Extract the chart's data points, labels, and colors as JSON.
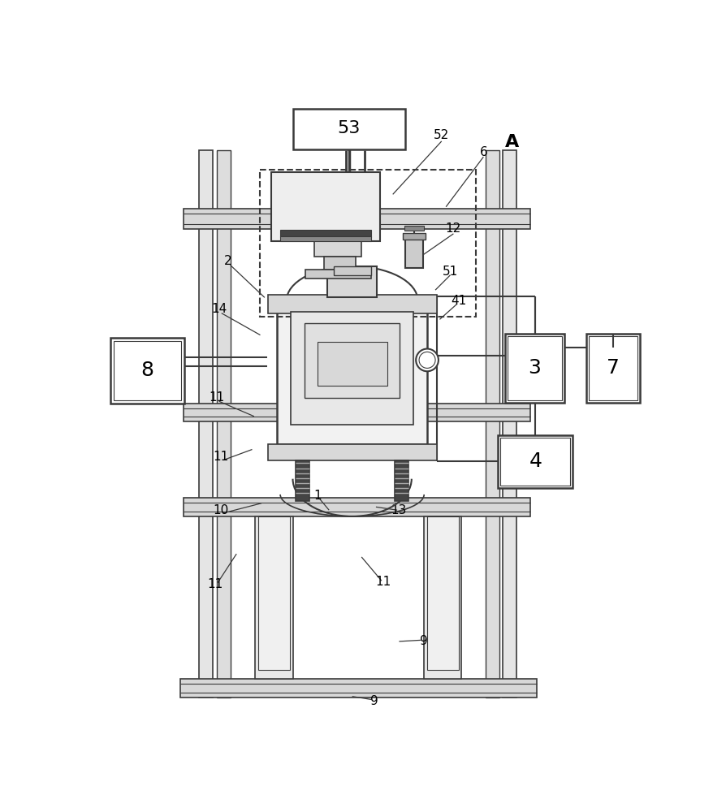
{
  "bg_color": "#ffffff",
  "line_color": "#3a3a3a",
  "lc2": "#555555",
  "fig_width": 8.95,
  "fig_height": 10.0,
  "dpi": 100
}
